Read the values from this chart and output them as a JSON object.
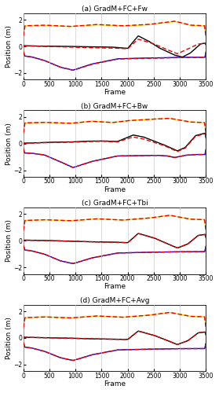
{
  "subplots": [
    {
      "label": "(a) GradM+FC+Fw"
    },
    {
      "label": "(b) GradM+FC+Bw"
    },
    {
      "label": "(c) GradM+FC+Tbi"
    },
    {
      "label": "(d) GradM+FC+Avg"
    }
  ],
  "x_max": 3500,
  "x_ticks": [
    0,
    500,
    1000,
    1500,
    2000,
    2500,
    3000,
    3500
  ],
  "ylim": [
    -2.5,
    2.5
  ],
  "y_ticks": [
    -2,
    0,
    2
  ],
  "xlabel": "Frame",
  "ylabel": "Position (m)",
  "color_black": "#000000",
  "color_blue": "#0000EE",
  "color_yellow": "#FFD700",
  "color_red": "#EE0000",
  "lw_solid": 1.0,
  "lw_dashed": 1.0,
  "label_fontsize": 6.5,
  "tick_fontsize": 5.5,
  "title_fontsize": 6.5,
  "figsize": [
    2.79,
    5.0
  ],
  "dpi": 100
}
